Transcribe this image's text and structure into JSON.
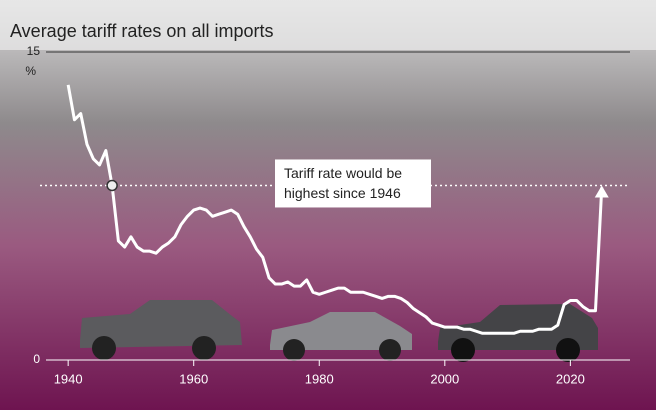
{
  "chart_data": {
    "type": "line",
    "title": "Average tariff rates on all imports",
    "y_unit": "%",
    "annotation": [
      "Tariff rate would be",
      "highest since 1946"
    ],
    "reference_line": 8.5,
    "color": "#ffffff",
    "x": [
      1940,
      1941,
      1942,
      1943,
      1944,
      1945,
      1946,
      1947,
      1948,
      1949,
      1950,
      1951,
      1952,
      1953,
      1954,
      1955,
      1956,
      1957,
      1958,
      1959,
      1960,
      1961,
      1962,
      1963,
      1964,
      1965,
      1966,
      1967,
      1968,
      1969,
      1970,
      1971,
      1972,
      1973,
      1974,
      1975,
      1976,
      1977,
      1978,
      1979,
      1980,
      1981,
      1982,
      1983,
      1984,
      1985,
      1986,
      1987,
      1988,
      1989,
      1990,
      1991,
      1992,
      1993,
      1994,
      1995,
      1996,
      1997,
      1998,
      1999,
      2000,
      2001,
      2002,
      2003,
      2004,
      2005,
      2006,
      2007,
      2008,
      2009,
      2010,
      2011,
      2012,
      2013,
      2014,
      2015,
      2016,
      2017,
      2018,
      2019,
      2020,
      2021,
      2022,
      2023,
      2024,
      2025
    ],
    "values": [
      13.4,
      11.7,
      12.0,
      10.5,
      9.8,
      9.5,
      10.2,
      8.5,
      5.8,
      5.5,
      6.0,
      5.5,
      5.3,
      5.3,
      5.2,
      5.5,
      5.7,
      6.0,
      6.6,
      7.0,
      7.3,
      7.4,
      7.3,
      7.0,
      7.1,
      7.2,
      7.3,
      7.1,
      6.5,
      6.0,
      5.4,
      5.0,
      4.0,
      3.7,
      3.7,
      3.8,
      3.6,
      3.6,
      3.9,
      3.3,
      3.2,
      3.3,
      3.4,
      3.5,
      3.5,
      3.3,
      3.3,
      3.3,
      3.2,
      3.1,
      3.0,
      3.1,
      3.1,
      3.0,
      2.8,
      2.5,
      2.3,
      2.1,
      1.8,
      1.7,
      1.6,
      1.6,
      1.6,
      1.5,
      1.5,
      1.4,
      1.3,
      1.3,
      1.3,
      1.3,
      1.3,
      1.3,
      1.4,
      1.4,
      1.4,
      1.5,
      1.5,
      1.5,
      1.7,
      2.7,
      2.9,
      2.9,
      2.6,
      2.4,
      2.4,
      8.4
    ],
    "xlim": [
      1938.7,
      2029.5
    ],
    "xticks": [
      1940,
      1960,
      1980,
      2000,
      2020
    ],
    "ylim": [
      0,
      15
    ],
    "yticks": [
      0,
      15
    ]
  }
}
